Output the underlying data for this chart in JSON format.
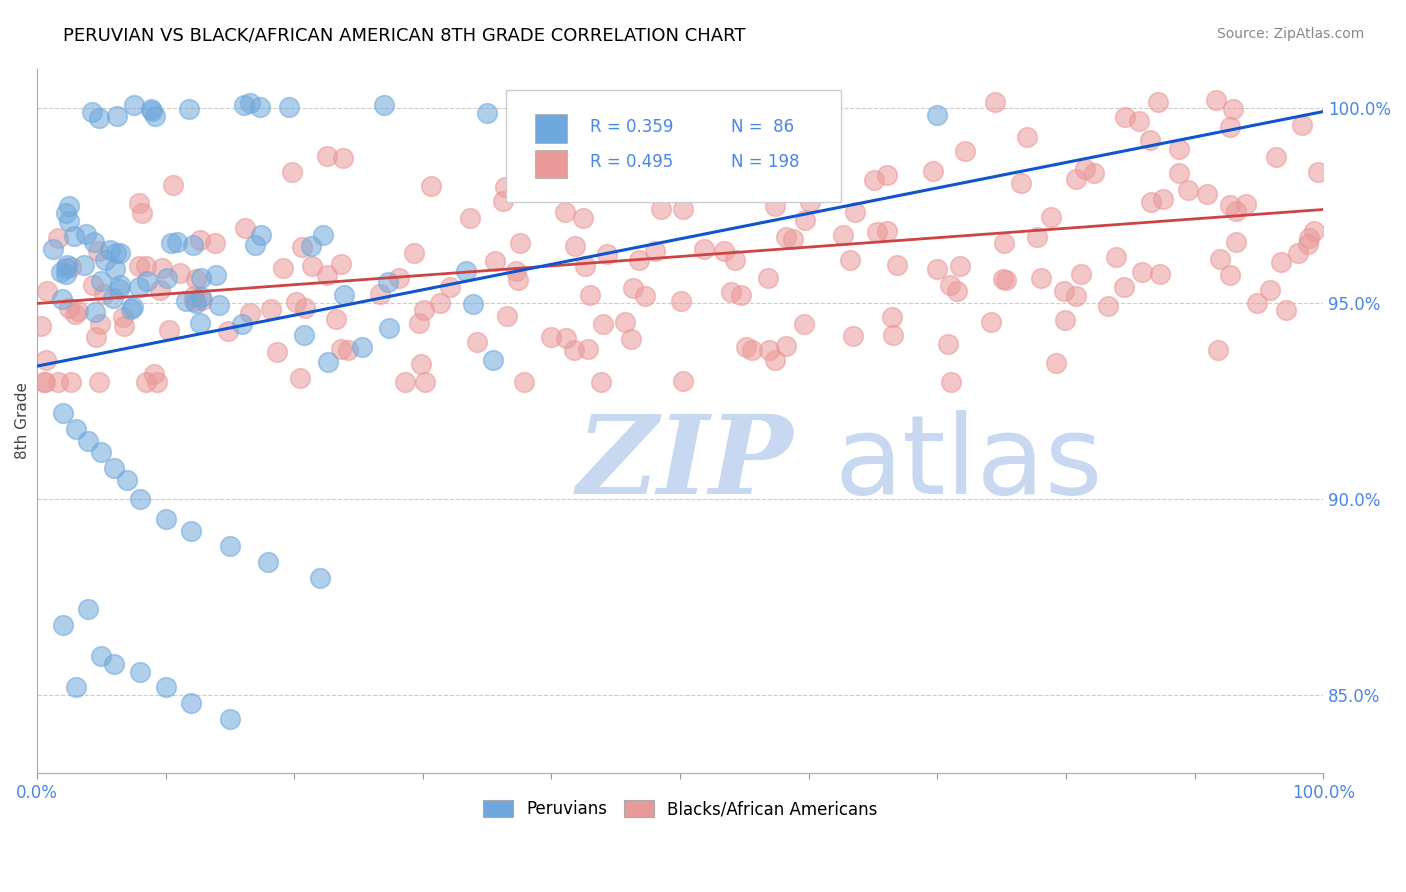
{
  "title": "PERUVIAN VS BLACK/AFRICAN AMERICAN 8TH GRADE CORRELATION CHART",
  "source": "Source: ZipAtlas.com",
  "ylabel": "8th Grade",
  "ylabel_right_labels": [
    "85.0%",
    "90.0%",
    "95.0%",
    "100.0%"
  ],
  "ylabel_right_values": [
    0.85,
    0.9,
    0.95,
    1.0
  ],
  "legend_label1": "Peruvians",
  "legend_label2": "Blacks/African Americans",
  "r1": 0.359,
  "n1": 86,
  "r2": 0.495,
  "n2": 198,
  "color_blue": "#6fa8dc",
  "color_pink": "#ea9999",
  "color_line_blue": "#1155cc",
  "color_line_pink": "#cc4444",
  "color_title": "#000000",
  "color_axis_label": "#4a86e8",
  "watermark_zip": "ZIP",
  "watermark_atlas": "atlas",
  "watermark_color_zip": "#c8d8f0",
  "watermark_color_atlas": "#c8d8f0",
  "background": "#ffffff",
  "xlim": [
    0.0,
    1.0
  ],
  "ylim": [
    0.83,
    1.01
  ],
  "blue_line_x": [
    0.0,
    1.0
  ],
  "blue_line_y": [
    0.934,
    0.999
  ],
  "pink_line_x": [
    0.0,
    1.0
  ],
  "pink_line_y": [
    0.95,
    0.974
  ]
}
